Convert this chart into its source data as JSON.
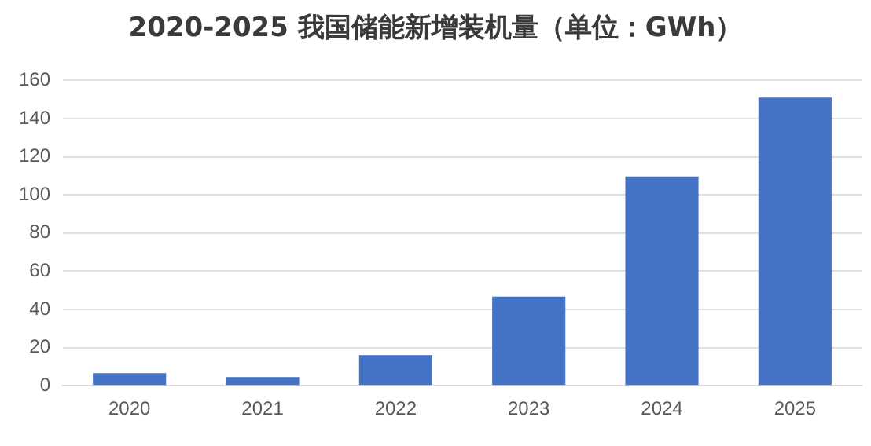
{
  "chart_data": {
    "type": "bar",
    "title": "2020-2025 我国储能新增装机量（单位：GWh）",
    "categories": [
      "2020",
      "2021",
      "2022",
      "2023",
      "2024",
      "2025"
    ],
    "values": [
      6.6,
      4.5,
      16,
      46.7,
      109.6,
      151
    ],
    "color": "#4472c4",
    "ylim": [
      0,
      160
    ],
    "yticks": [
      0,
      20,
      40,
      60,
      80,
      100,
      120,
      140,
      160
    ],
    "grid": "y",
    "legend": false
  }
}
